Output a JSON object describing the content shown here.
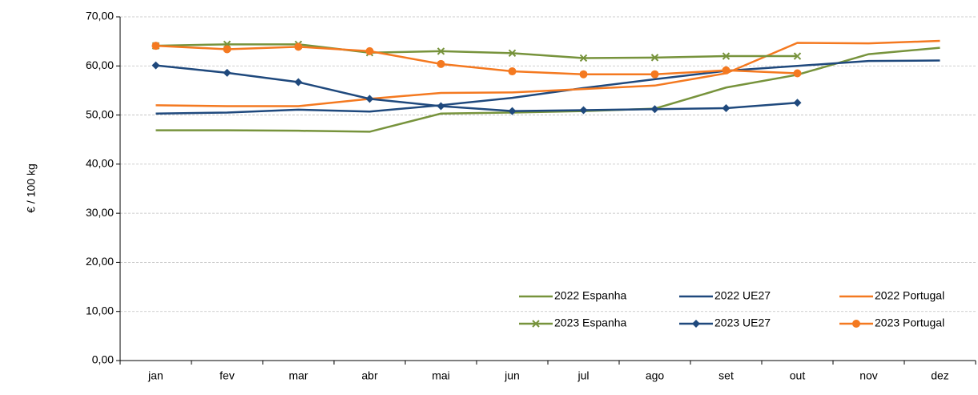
{
  "chart_data": {
    "type": "line",
    "y_label": "€ / 100 kg",
    "categories": [
      "jan",
      "fev",
      "mar",
      "abr",
      "mai",
      "jun",
      "jul",
      "ago",
      "set",
      "out",
      "nov",
      "dez"
    ],
    "ylim": [
      0,
      70
    ],
    "yticks": [
      {
        "value": 0,
        "label": "0,00"
      },
      {
        "value": 10,
        "label": "10,00"
      },
      {
        "value": 20,
        "label": "20,00"
      },
      {
        "value": 30,
        "label": "30,00"
      },
      {
        "value": 40,
        "label": "40,00"
      },
      {
        "value": 50,
        "label": "50,00"
      },
      {
        "value": 60,
        "label": "60,00"
      },
      {
        "value": 70,
        "label": "70,00"
      }
    ],
    "grid": true,
    "legend": "lower-right",
    "series": [
      {
        "name": "2022 Espanha",
        "color": "#77933c",
        "marker": "none",
        "values": [
          46.9,
          46.9,
          46.8,
          46.6,
          50.3,
          50.5,
          50.8,
          51.3,
          55.6,
          58.2,
          62.4,
          63.7
        ]
      },
      {
        "name": "2022 UE27",
        "color": "#1f497d",
        "marker": "none",
        "values": [
          50.3,
          50.5,
          51.1,
          50.7,
          52.0,
          53.5,
          55.5,
          57.3,
          59.0,
          60.0,
          61.0,
          61.1
        ]
      },
      {
        "name": "2022 Portugal",
        "color": "#f47920",
        "marker": "none",
        "values": [
          52.0,
          51.8,
          51.8,
          53.3,
          54.5,
          54.6,
          55.3,
          56.0,
          58.5,
          64.7,
          64.6,
          65.1
        ]
      },
      {
        "name": "2023 Espanha",
        "color": "#77933c",
        "marker": "x",
        "values": [
          64.1,
          64.4,
          64.4,
          62.7,
          63.0,
          62.6,
          61.6,
          61.7,
          62.0,
          62.0,
          null,
          null
        ]
      },
      {
        "name": "2023 UE27",
        "color": "#1f497d",
        "marker": "diamond",
        "values": [
          60.1,
          58.6,
          56.7,
          53.3,
          51.8,
          50.8,
          51.0,
          51.2,
          51.4,
          52.5,
          null,
          null
        ]
      },
      {
        "name": "2023 Portugal",
        "color": "#f47920",
        "marker": "circle",
        "values": [
          64.1,
          63.4,
          63.9,
          63.0,
          60.4,
          58.9,
          58.3,
          58.3,
          59.1,
          58.5,
          null,
          null
        ]
      }
    ]
  }
}
